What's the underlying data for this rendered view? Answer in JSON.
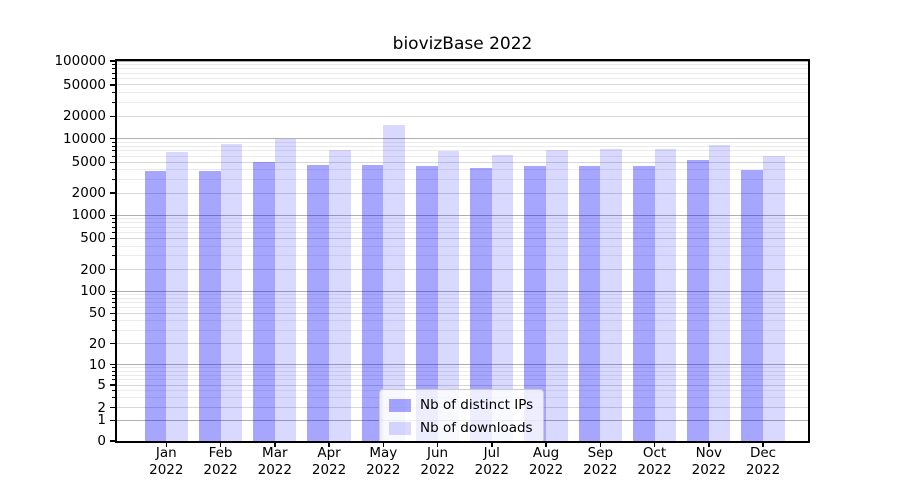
{
  "chart_data": {
    "type": "bar",
    "title": "biovizBase 2022",
    "categories": [
      "Jan 2022",
      "Feb 2022",
      "Mar 2022",
      "Apr 2022",
      "May 2022",
      "Jun 2022",
      "Jul 2022",
      "Aug 2022",
      "Sep 2022",
      "Oct 2022",
      "Nov 2022",
      "Dec 2022"
    ],
    "series": [
      {
        "name": "Nb of distinct IPs",
        "color": "#0000FF59",
        "values": [
          3850,
          3880,
          5100,
          4700,
          4600,
          4450,
          4300,
          4500,
          4450,
          4450,
          5300,
          4000
        ]
      },
      {
        "name": "Nb of downloads",
        "color": "#0000FF26",
        "values": [
          6800,
          8600,
          10000,
          7200,
          15500,
          6900,
          6200,
          7200,
          7400,
          7300,
          8200,
          6000
        ]
      }
    ],
    "xlabel": "",
    "ylabel": "",
    "yscale": "symlog",
    "ylim": [
      0,
      100000
    ],
    "yticks": [
      0,
      1,
      2,
      5,
      10,
      20,
      50,
      100,
      200,
      500,
      1000,
      2000,
      5000,
      10000,
      20000,
      50000,
      100000
    ],
    "grid": "horizontal major and minor gridlines",
    "legend_position": "lower center"
  },
  "colors": {
    "major_grid": "#b0b0b0",
    "labeled_grid": "#d7d7d7",
    "minor_grid": "#ebebeb",
    "axis": "#000000"
  }
}
